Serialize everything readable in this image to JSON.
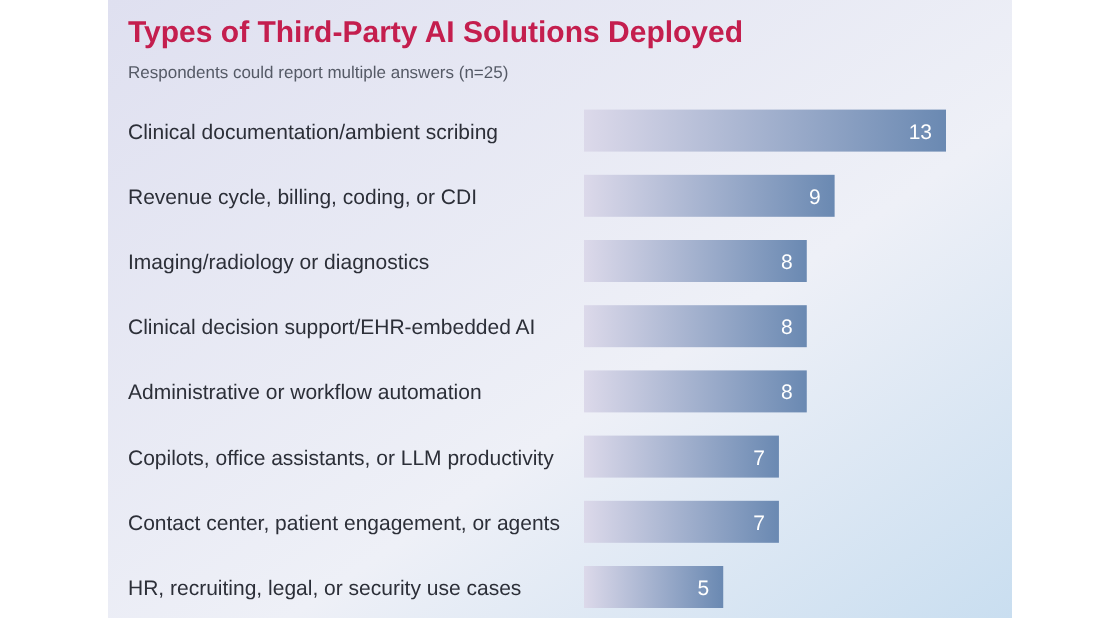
{
  "chart_data": {
    "type": "bar",
    "orientation": "horizontal",
    "title": "Types of Third-Party AI Solutions Deployed",
    "subtitle": "Respondents could report multiple answers (n=25)",
    "categories": [
      "Clinical documentation/ambient scribing",
      "Revenue cycle, billing, coding, or CDI",
      "Imaging/radiology or diagnostics",
      "Clinical decision support/EHR-embedded AI",
      "Administrative or workflow automation",
      "Copilots, office assistants, or LLM productivity",
      "Contact center, patient engagement, or agents",
      "HR, recruiting, legal, or security use cases"
    ],
    "values": [
      13,
      9,
      8,
      8,
      8,
      7,
      7,
      5
    ],
    "color": "#6a89b2",
    "data_labels": true
  }
}
